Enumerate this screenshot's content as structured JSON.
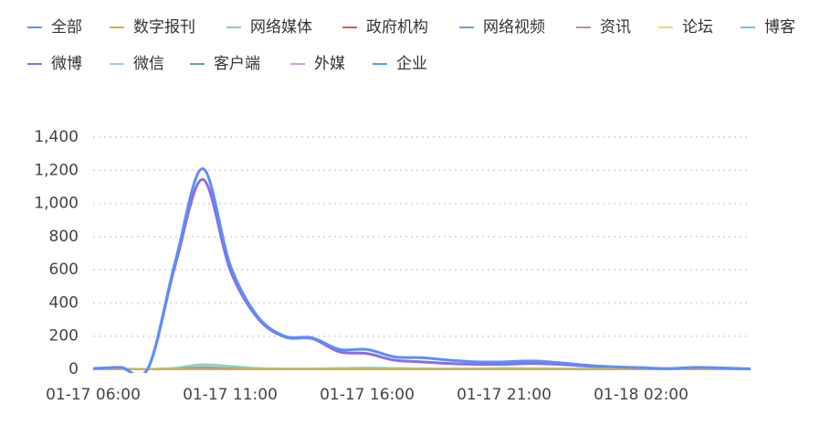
{
  "chart_data": {
    "type": "line",
    "categories": [
      "01-17 06:00",
      null,
      null,
      null,
      null,
      "01-17 11:00",
      null,
      null,
      null,
      null,
      "01-17 16:00",
      null,
      null,
      null,
      null,
      "01-17 21:00",
      null,
      null,
      null,
      null,
      "01-18 02:00",
      null,
      null,
      null,
      null
    ],
    "series": [
      {
        "name": "全部",
        "color": "#5b8ff9",
        "values": [
          5,
          12,
          5,
          650,
          1210,
          630,
          320,
          200,
          190,
          120,
          120,
          75,
          70,
          55,
          45,
          45,
          50,
          40,
          25,
          15,
          10,
          5,
          12,
          8,
          3
        ]
      },
      {
        "name": "数字报刊",
        "color": "#e8a838",
        "values": [
          0,
          0,
          0,
          0,
          0,
          0,
          0,
          0,
          0,
          0,
          0,
          0,
          0,
          0,
          0,
          0,
          0,
          0,
          0,
          0,
          0,
          0,
          0,
          0,
          0
        ]
      },
      {
        "name": "网络媒体",
        "color": "#7fd8b5",
        "values": [
          2,
          5,
          3,
          10,
          30,
          20,
          8,
          5,
          5,
          8,
          10,
          8,
          6,
          5,
          5,
          8,
          6,
          5,
          4,
          3,
          2,
          2,
          3,
          2,
          1
        ]
      },
      {
        "name": "政府机构",
        "color": "#e0594c",
        "values": [
          0,
          0,
          0,
          0,
          0,
          0,
          0,
          0,
          0,
          0,
          0,
          0,
          0,
          0,
          0,
          0,
          0,
          0,
          0,
          0,
          0,
          0,
          0,
          0,
          0
        ]
      },
      {
        "name": "网络视频",
        "color": "#6f9be8",
        "values": [
          0,
          1,
          0,
          2,
          5,
          3,
          1,
          1,
          1,
          1,
          1,
          1,
          1,
          1,
          1,
          1,
          1,
          1,
          0,
          0,
          0,
          0,
          0,
          0,
          0
        ]
      },
      {
        "name": "资讯",
        "color": "#d4879a",
        "values": [
          1,
          3,
          2,
          5,
          10,
          6,
          3,
          2,
          2,
          3,
          4,
          3,
          2,
          2,
          2,
          3,
          2,
          2,
          1,
          1,
          1,
          1,
          1,
          1,
          0
        ]
      },
      {
        "name": "论坛",
        "color": "#f5d76e",
        "values": [
          0,
          0,
          0,
          0,
          1,
          0,
          0,
          0,
          0,
          0,
          0,
          0,
          0,
          0,
          0,
          0,
          0,
          0,
          0,
          0,
          0,
          0,
          0,
          0,
          0
        ]
      },
      {
        "name": "博客",
        "color": "#6dc8d8",
        "values": [
          0,
          0,
          0,
          0,
          0,
          0,
          0,
          0,
          0,
          0,
          0,
          0,
          0,
          0,
          0,
          0,
          0,
          0,
          0,
          0,
          0,
          0,
          0,
          0,
          0
        ]
      },
      {
        "name": "微博",
        "color": "#8c6ee0",
        "values": [
          2,
          10,
          5,
          630,
          1145,
          600,
          310,
          195,
          185,
          105,
          95,
          55,
          45,
          35,
          30,
          30,
          35,
          30,
          20,
          10,
          8,
          3,
          10,
          5,
          2
        ]
      },
      {
        "name": "微信",
        "color": "#9ecfe0",
        "values": [
          1,
          3,
          2,
          8,
          20,
          12,
          6,
          4,
          4,
          5,
          6,
          5,
          4,
          4,
          4,
          6,
          5,
          4,
          3,
          2,
          2,
          1,
          2,
          1,
          1
        ]
      },
      {
        "name": "客户端",
        "color": "#5aad8a",
        "values": [
          1,
          2,
          1,
          5,
          15,
          10,
          5,
          3,
          3,
          4,
          5,
          4,
          3,
          3,
          3,
          5,
          4,
          3,
          2,
          2,
          1,
          1,
          2,
          1,
          1
        ]
      },
      {
        "name": "外媒",
        "color": "#d49ec8",
        "values": [
          0,
          0,
          0,
          0,
          0,
          0,
          0,
          0,
          0,
          0,
          0,
          0,
          0,
          0,
          0,
          0,
          0,
          0,
          0,
          0,
          0,
          0,
          0,
          0,
          0
        ]
      },
      {
        "name": "企业",
        "color": "#4ea3e0",
        "values": [
          0,
          1,
          0,
          1,
          2,
          1,
          1,
          0,
          0,
          1,
          1,
          1,
          0,
          0,
          0,
          1,
          1,
          0,
          0,
          0,
          0,
          0,
          0,
          0,
          0
        ]
      }
    ],
    "ylim": [
      0,
      1400
    ],
    "yticks": [
      0,
      200,
      400,
      600,
      800,
      {
        "value": 1000,
        "label": "1,000"
      },
      {
        "value": 1200,
        "label": "1,200"
      },
      {
        "value": 1400,
        "label": "1,400"
      }
    ],
    "grid": true
  }
}
